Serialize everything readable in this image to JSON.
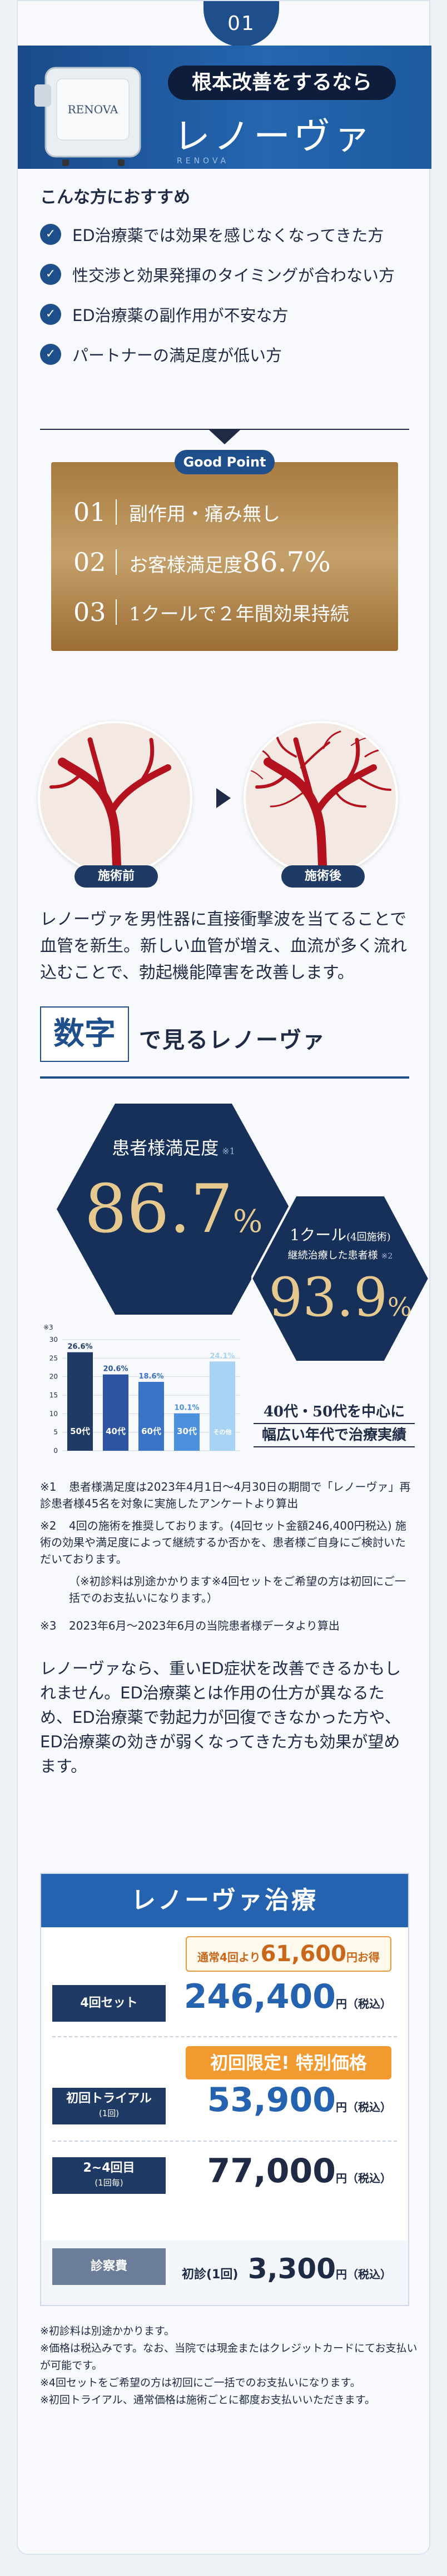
{
  "header": {
    "section_number": "01",
    "pill_text": "根本改善をするなら",
    "title": "レノーヴァ",
    "subtitle_en": "RENOVA",
    "device_label": "RENOVA"
  },
  "recommend": {
    "title": "こんな方におすすめ",
    "items": [
      "ED治療薬では効果を感じなくなってきた方",
      "性交渉と効果発揮のタイミングが合わない方",
      "ED治療薬の副作用が不安な方",
      "パートナーの満足度が低い方"
    ]
  },
  "good_point": {
    "badge": "Good Point",
    "items": [
      {
        "num": "01",
        "text": "副作用・痛み無し"
      },
      {
        "num": "02",
        "text_prefix": "お客様満足度",
        "highlight": "86.7%"
      },
      {
        "num": "03",
        "text": "1クールで２年間効果持続"
      }
    ]
  },
  "before_after": {
    "before": "施術前",
    "after": "施術後"
  },
  "description": "レノーヴァを男性器に直接衝撃波を当てることで血管を新生。新しい血管が増え、血流が多く流れ込むことで、勃起機能障害を改善します。",
  "numbers": {
    "heading_key": "数字",
    "heading_rest": "で見るレノーヴァ",
    "stat1": {
      "label": "患者様満足度",
      "note": "※1",
      "value": "86.7",
      "unit": "%"
    },
    "stat2": {
      "line1": "1クール",
      "line1_small": "(4回施術)",
      "line2": "継続治療した患者様",
      "note": "※2",
      "value": "93.9",
      "unit": "%"
    },
    "age_note_line1": "40代・50代を中心に",
    "age_note_line2": "幅広い年代で治療実績"
  },
  "chart_data": {
    "type": "bar",
    "note": "※3",
    "categories": [
      "50代",
      "40代",
      "60代",
      "30代",
      "その他"
    ],
    "values": [
      26.6,
      20.6,
      18.6,
      10.1,
      24.1
    ],
    "value_labels": [
      "26.6%",
      "20.6%",
      "18.6%",
      "10.1%",
      "24.1%"
    ],
    "y_ticks": [
      "0",
      "5",
      "10",
      "15",
      "20",
      "25",
      "30"
    ],
    "ylim": [
      0,
      30
    ],
    "colors": [
      "#1f3a64",
      "#2c54a0",
      "#3b73c7",
      "#4b90dc",
      "#a8d3f2"
    ]
  },
  "footnotes": [
    {
      "mark": "※1",
      "text": "患者様満足度は2023年4月1日〜4月30日の期間で「レノーヴァ」再診患者様45名を対象に実施したアンケートより算出"
    },
    {
      "mark": "※2",
      "text": "4回の施術を推奨しております。(4回セット金額246,400円税込) 施術の効果や満足度によって継続するか否かを、患者様ご自身にご検討いただいております。"
    },
    {
      "mark": "",
      "text": "（※初診料は別途かかります※4回セットをご希望の方は初回にご一括でのお支払いになります。）"
    },
    {
      "mark": "※3",
      "text": "2023年6月〜2023年6月の当院患者様データより算出"
    }
  ],
  "description2": "レノーヴァなら、重いED症状を改善できるかもしれません。ED治療薬とは作用の仕方が異なるため、ED治療薬で勃起力が回復できなかった方や、ED治療薬の効きが弱くなってきた方も効果が望めます。",
  "price": {
    "title": "レノーヴァ治療",
    "tag1_prefix": "通常4回より",
    "tag1_amount": "61,600",
    "tag1_suffix": "円お得",
    "tag2": "初回限定! 特別価格",
    "tax_label": "円（税込）",
    "rows": [
      {
        "label": "4回セット",
        "sub": "",
        "price": "246,400"
      },
      {
        "label": "初回トライアル",
        "sub": "(1回)",
        "price": "53,900"
      },
      {
        "label": "2~4回目",
        "sub": "(1回毎)",
        "price": "77,000"
      }
    ],
    "consult": {
      "label": "診察費",
      "first": "初診(1回)",
      "price": "3,300"
    }
  },
  "tail_notes": [
    "※初診料は別途かかります。",
    "※価格は税込みです。なお、当院では現金またはクレジットカードにてお支払いが可能です。",
    "※4回セットをご希望の方は初回にご一括でのお支払いになります。",
    "※初回トライアル、通常価格は施術ごとに都度お支払いいただきます。"
  ]
}
